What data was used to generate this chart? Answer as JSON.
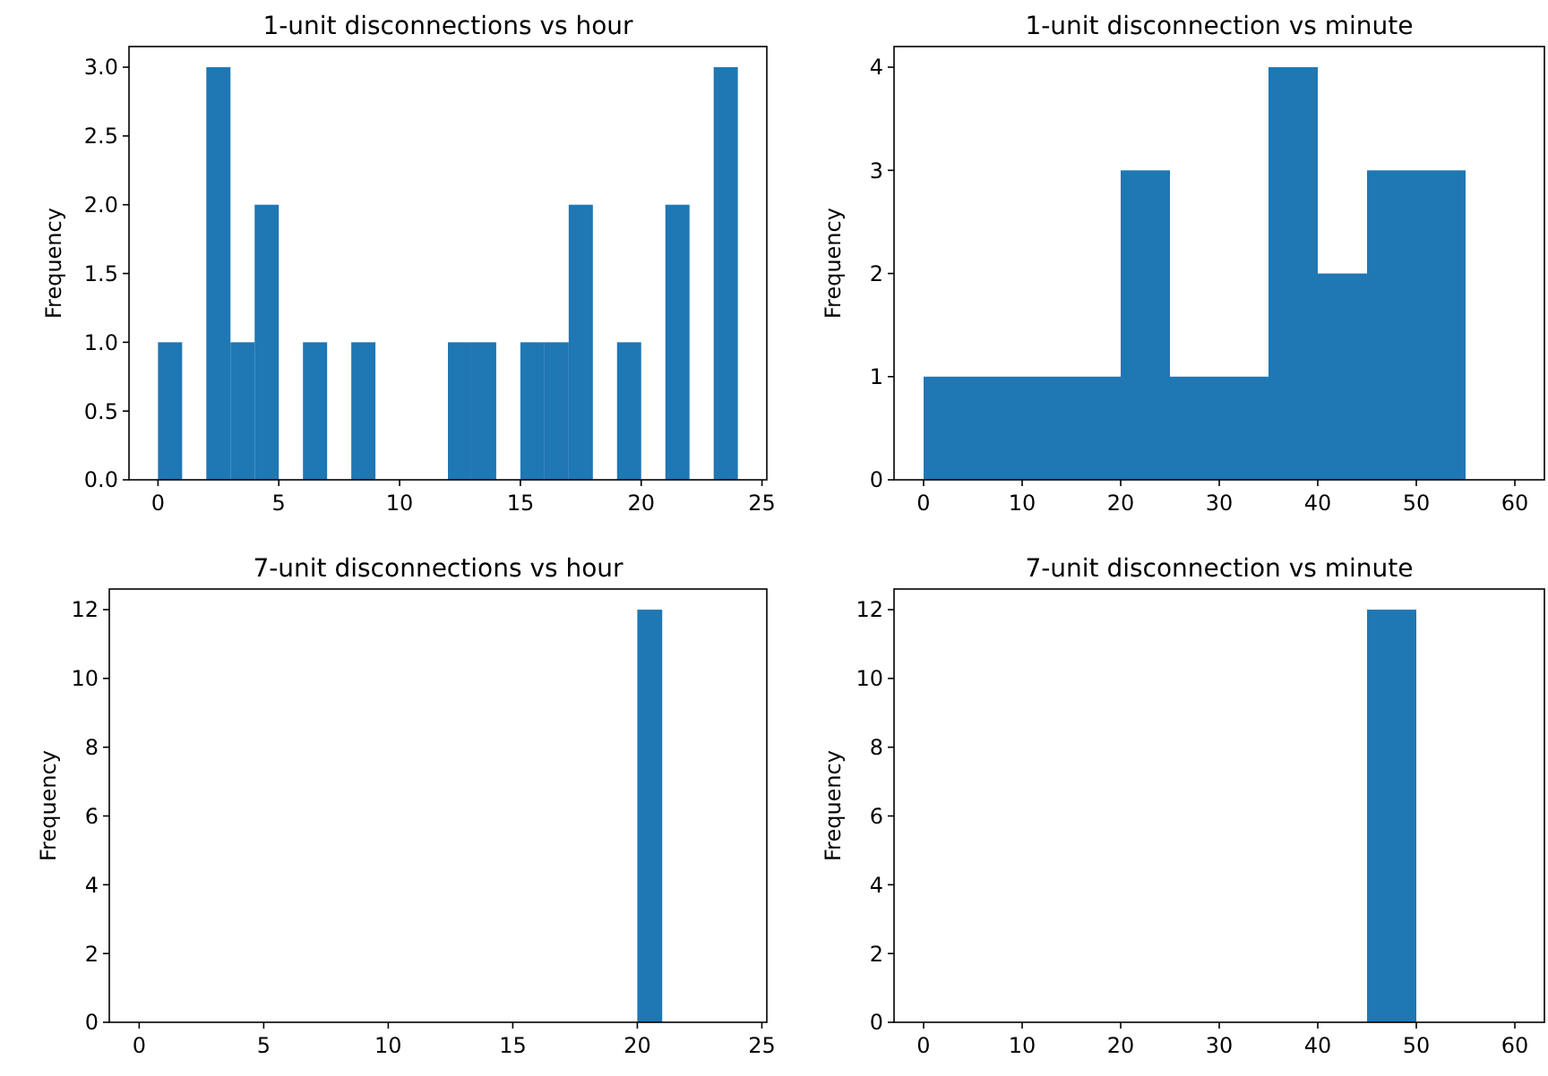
{
  "chart_data": [
    {
      "type": "histogram",
      "title": "1-unit disconnections vs hour",
      "ylabel": "Frequency",
      "color": "#1f77b4",
      "bins": [
        0,
        1,
        2,
        3,
        4,
        5,
        6,
        7,
        8,
        9,
        10,
        11,
        12,
        13,
        14,
        15,
        16,
        17,
        18,
        19,
        20,
        21,
        22,
        23,
        24
      ],
      "values": [
        1,
        0,
        3,
        1,
        2,
        0,
        1,
        0,
        1,
        0,
        0,
        0,
        1,
        1,
        0,
        1,
        1,
        2,
        0,
        1,
        0,
        2,
        0,
        3
      ],
      "xlim": [
        -1.2,
        25.2
      ],
      "xticks": [
        0,
        5,
        10,
        15,
        20,
        25
      ],
      "ylim": [
        0,
        3.15
      ],
      "yticks": [
        {
          "value": 0,
          "label": "0.0"
        },
        {
          "value": 0.5,
          "label": "0.5"
        },
        {
          "value": 1,
          "label": "1.0"
        },
        {
          "value": 1.5,
          "label": "1.5"
        },
        {
          "value": 2,
          "label": "2.0"
        },
        {
          "value": 2.5,
          "label": "2.5"
        },
        {
          "value": 3,
          "label": "3.0"
        }
      ],
      "grid": false
    },
    {
      "type": "histogram",
      "title": "1-unit disconnection vs minute",
      "ylabel": "Frequency",
      "color": "#1f77b4",
      "bins": [
        0,
        5,
        10,
        15,
        20,
        25,
        30,
        35,
        40,
        45,
        50,
        55,
        60
      ],
      "values": [
        1,
        1,
        1,
        1,
        3,
        1,
        1,
        4,
        2,
        3,
        3,
        0
      ],
      "xlim": [
        -3,
        63
      ],
      "xticks": [
        0,
        10,
        20,
        30,
        40,
        50,
        60
      ],
      "ylim": [
        0,
        4.2
      ],
      "yticks": [
        0,
        1,
        2,
        3,
        4
      ],
      "grid": false
    },
    {
      "type": "histogram",
      "title": "7-unit disconnections vs hour",
      "ylabel": "Frequency",
      "color": "#1f77b4",
      "bins": [
        0,
        1,
        2,
        3,
        4,
        5,
        6,
        7,
        8,
        9,
        10,
        11,
        12,
        13,
        14,
        15,
        16,
        17,
        18,
        19,
        20,
        21,
        22,
        23,
        24
      ],
      "values": [
        0,
        0,
        0,
        0,
        0,
        0,
        0,
        0,
        0,
        0,
        0,
        0,
        0,
        0,
        0,
        0,
        0,
        0,
        0,
        0,
        12,
        0,
        0,
        0
      ],
      "xlim": [
        -1.2,
        25.2
      ],
      "xticks": [
        0,
        5,
        10,
        15,
        20,
        25
      ],
      "ylim": [
        0,
        12.6
      ],
      "yticks": [
        0,
        2,
        4,
        6,
        8,
        10,
        12
      ],
      "grid": false
    },
    {
      "type": "histogram",
      "title": "7-unit disconnection vs minute",
      "ylabel": "Frequency",
      "color": "#1f77b4",
      "bins": [
        0,
        5,
        10,
        15,
        20,
        25,
        30,
        35,
        40,
        45,
        50,
        55,
        60
      ],
      "values": [
        0,
        0,
        0,
        0,
        0,
        0,
        0,
        0,
        0,
        12,
        0,
        0
      ],
      "xlim": [
        -3,
        63
      ],
      "xticks": [
        0,
        10,
        20,
        30,
        40,
        50,
        60
      ],
      "ylim": [
        0,
        12.6
      ],
      "yticks": [
        0,
        2,
        4,
        6,
        8,
        10,
        12
      ],
      "grid": false
    }
  ]
}
